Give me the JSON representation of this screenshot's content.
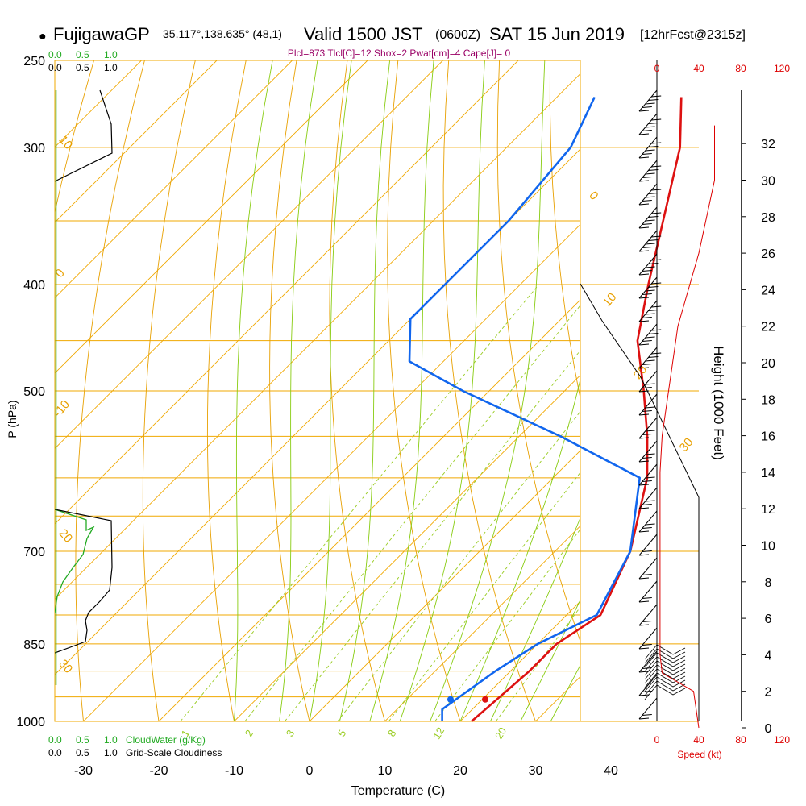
{
  "header": {
    "dot": "●",
    "station": "FujigawaGP",
    "coords": "35.117°,138.635° (48,1)",
    "valid": "Valid 1500 JST",
    "zulu": "(0600Z)",
    "date": "SAT 15 Jun 2019",
    "forecast": "[12hrFcst@2315z]"
  },
  "indices_line": "Plcl=873 Tlcl[C]=12 Shox=2 Pwat[cm]=4 Cape[J]= 0",
  "colors": {
    "temperature": "#dd1111",
    "dewpoint": "#1166ee",
    "isobar": "#f0a800",
    "dry_adiabat": "#e8a000",
    "moist_adiabat": "#88cc11",
    "mixing_ratio": "#99cc22",
    "cloud_water": "#22aa22",
    "speed": "#dd0000"
  },
  "cloud_panel": {
    "top_green_labels": [
      "0.0",
      "0.5",
      "1.0"
    ],
    "top_black_labels": [
      "0.0",
      "0.5",
      "1.0"
    ],
    "bottom_green_labels": [
      "0.0",
      "0.5",
      "1.0"
    ],
    "bottom_black_labels": [
      "0.0",
      "0.5",
      "1.0"
    ],
    "cloud_water_label": "CloudWater (g/Kg)",
    "cloudiness_label": "Grid-Scale Cloudiness"
  },
  "speed_axis": {
    "top_labels": [
      "0",
      "40",
      "80",
      "120"
    ],
    "bottom_labels": [
      "0",
      "40",
      "80",
      "120"
    ],
    "label": "Speed (kt)"
  },
  "chart_data": {
    "type": "skew-t",
    "title": "FujigawaGP Valid 1500 JST SAT 15 Jun 2019",
    "xlabel": "Temperature (C)",
    "ylabel": "P (hPa)",
    "y2label": "Height (1000 Feet)",
    "x_ticks": [
      -30,
      -20,
      -10,
      0,
      10,
      20,
      30,
      40
    ],
    "pressure_ticks": [
      250,
      300,
      400,
      500,
      700,
      850,
      1000
    ],
    "height_ticks": [
      0,
      2,
      4,
      6,
      8,
      10,
      12,
      14,
      16,
      18,
      20,
      22,
      24,
      26,
      28,
      30,
      32
    ],
    "theta_labels": [
      -10,
      0,
      10,
      20,
      30
    ],
    "isotherm_labels": [
      30,
      20,
      10,
      0,
      -10,
      -20,
      -30
    ],
    "mixing_ratio_labels": [
      1,
      2,
      3,
      5,
      8,
      12,
      20
    ],
    "temperature": {
      "name": "Temperature",
      "points": [
        [
          1000,
          21.5
        ],
        [
          950,
          22.0
        ],
        [
          900,
          22.5
        ],
        [
          850,
          22.5
        ],
        [
          800,
          24.5
        ],
        [
          700,
          20.0
        ],
        [
          600,
          12.5
        ],
        [
          550,
          7.0
        ],
        [
          500,
          0.5
        ],
        [
          450,
          -7.0
        ],
        [
          400,
          -13.0
        ],
        [
          350,
          -19.5
        ],
        [
          300,
          -27.0
        ],
        [
          270,
          -33.5
        ]
      ]
    },
    "dewpoint": {
      "name": "Dewpoint",
      "points": [
        [
          1000,
          17.6
        ],
        [
          975,
          16.0
        ],
        [
          900,
          18.0
        ],
        [
          850,
          20.0
        ],
        [
          800,
          24.0
        ],
        [
          700,
          20.0
        ],
        [
          600,
          11.5
        ],
        [
          550,
          -4.5
        ],
        [
          500,
          -23.5
        ],
        [
          470,
          -34.5
        ],
        [
          430,
          -40.0
        ],
        [
          400,
          -40.0
        ],
        [
          350,
          -40.0
        ],
        [
          300,
          -41.5
        ],
        [
          270,
          -45.0
        ]
      ]
    },
    "surface": {
      "temperature_c": 21.5,
      "dewpoint_c": 17.6
    },
    "wind_speed_kt": [
      [
        0,
        40
      ],
      [
        2,
        35
      ],
      [
        3,
        5
      ],
      [
        4,
        3
      ],
      [
        6,
        3
      ],
      [
        10,
        3
      ],
      [
        14,
        3
      ],
      [
        16,
        5
      ],
      [
        18,
        10
      ],
      [
        22,
        20
      ],
      [
        26,
        40
      ],
      [
        30,
        55
      ],
      [
        33,
        55
      ]
    ]
  }
}
